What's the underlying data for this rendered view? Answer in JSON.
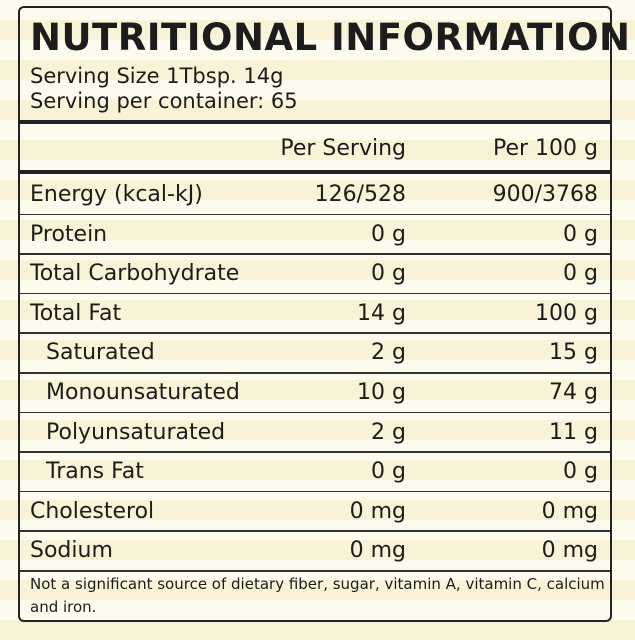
{
  "header": {
    "title": "NUTRITIONAL INFORMATION",
    "serving_size": "Serving Size 1Tbsp. 14g",
    "servings_per_container": "Serving per container: 65"
  },
  "table": {
    "columns": [
      "Per Serving",
      "Per 100 g"
    ],
    "rows": [
      [
        "Energy (kcal-kJ)",
        "126/528",
        "900/3768"
      ],
      [
        "Protein",
        "0 g",
        "0 g"
      ],
      [
        "Total Carbohydrate",
        "0 g",
        "0 g"
      ],
      [
        "Total Fat",
        "14 g",
        "100 g"
      ],
      [
        "Saturated",
        "2 g",
        "15 g"
      ],
      [
        "Monounsaturated",
        "10 g",
        "74 g"
      ],
      [
        "Polyunsaturated",
        "2 g",
        "11 g"
      ],
      [
        "Trans Fat",
        "0 g",
        "0 g"
      ],
      [
        "Cholesterol",
        "0 mg",
        "0 mg"
      ],
      [
        "Sodium",
        "0 mg",
        "0 mg"
      ]
    ]
  },
  "footnote": "Not a significant source of dietary fiber, sugar, vitamin A, vitamin C, calcium and iron."
}
